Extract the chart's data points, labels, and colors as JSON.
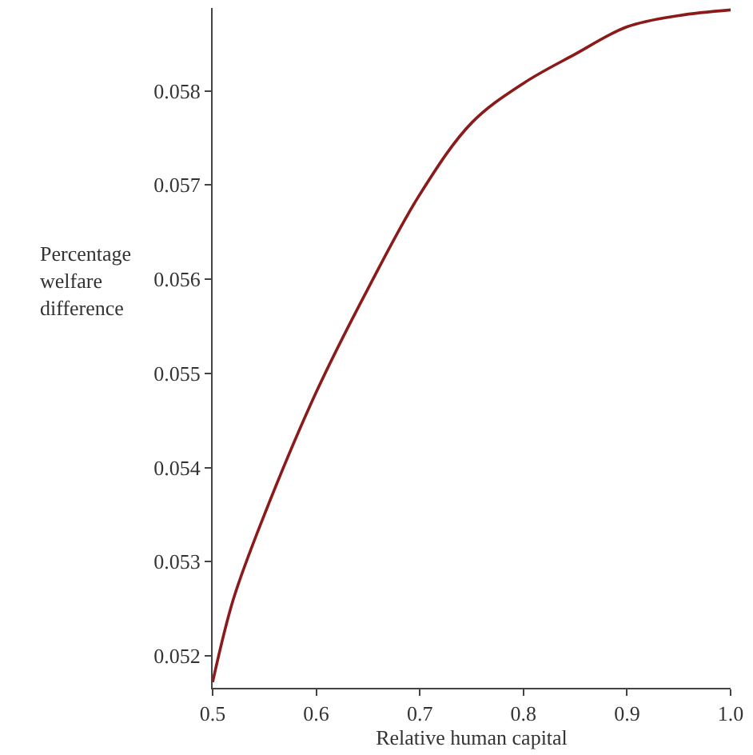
{
  "chart_data": {
    "type": "line",
    "xlabel": "Relative human capital",
    "ylabel": "Percentage welfare difference",
    "x": [
      0.5,
      0.52,
      0.55,
      0.6,
      0.65,
      0.7,
      0.75,
      0.8,
      0.85,
      0.9,
      0.95,
      1.0
    ],
    "series": [
      {
        "color": "#8b1a1a",
        "values": [
          0.05172,
          0.0526,
          0.0535,
          0.0548,
          0.0559,
          0.0569,
          0.05766,
          0.05808,
          0.05839,
          0.05868,
          0.0588,
          0.05886
        ]
      }
    ],
    "xlim": [
      0.5,
      1.0
    ],
    "ylim": [
      0.05166,
      0.05888
    ],
    "xticks": [
      0.5,
      0.6,
      0.7,
      0.8,
      0.9,
      {
        "value": 1.0,
        "label": "1.0"
      }
    ],
    "yticks": [
      0.052,
      0.053,
      0.054,
      0.055,
      0.056,
      0.057,
      0.058
    ],
    "marker": "none",
    "line_style": "solid"
  }
}
